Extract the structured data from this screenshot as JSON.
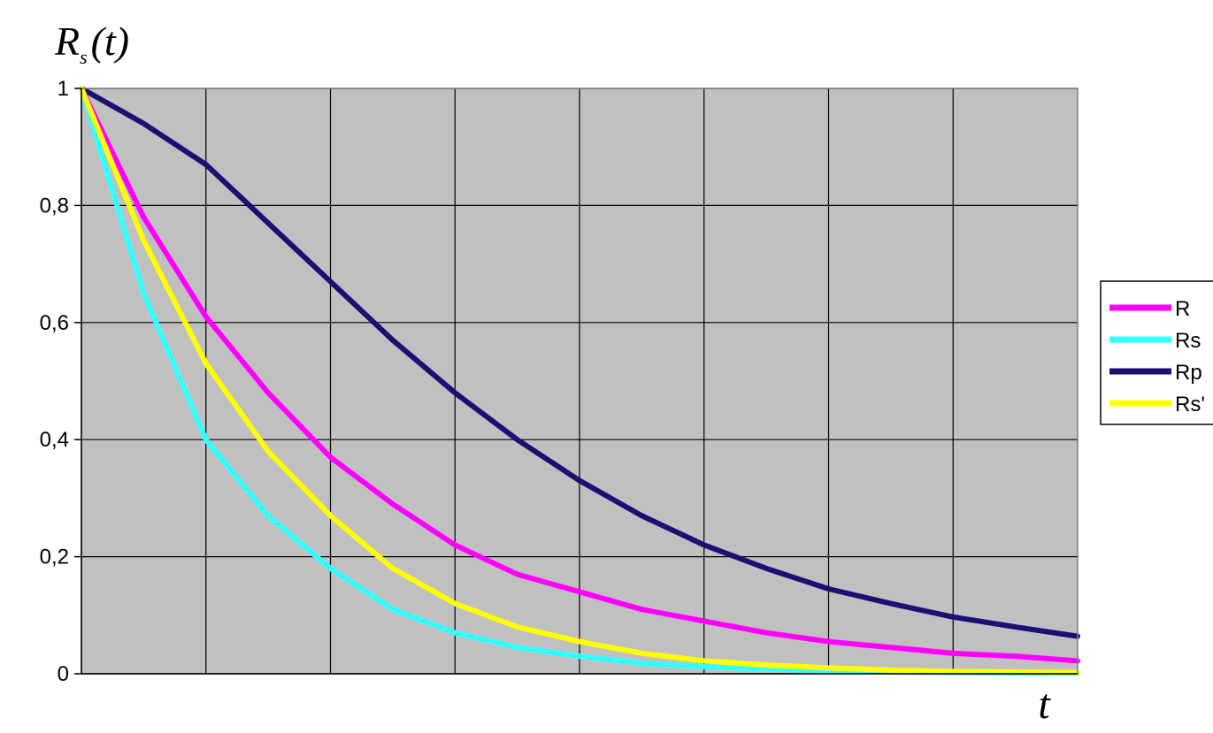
{
  "chart_data": {
    "type": "line",
    "ylabel": "R_s(t)",
    "ylabel_main": "R",
    "ylabel_sub": "s",
    "ylabel_arg": "(t)",
    "xlabel": "t",
    "ylim": [
      0,
      1
    ],
    "yticks": [
      0,
      0.2,
      0.4,
      0.6,
      0.8,
      1
    ],
    "ytick_labels": [
      "0",
      "0,2",
      "0,4",
      "0,6",
      "0,8",
      "1"
    ],
    "x": [
      0,
      0.5,
      1,
      1.5,
      2,
      2.5,
      3,
      3.5,
      4,
      4.5,
      5,
      5.5,
      6,
      6.5,
      7,
      7.5,
      8
    ],
    "xlim": [
      0,
      8
    ],
    "x_gridlines": 8,
    "grid": true,
    "plot_background": "#c0c0c0",
    "legend_position": "right",
    "series": [
      {
        "name": "R",
        "color": "#ff00ff",
        "values": [
          1.0,
          0.78,
          0.61,
          0.48,
          0.37,
          0.29,
          0.22,
          0.17,
          0.14,
          0.11,
          0.09,
          0.07,
          0.055,
          0.045,
          0.035,
          0.03,
          0.022
        ]
      },
      {
        "name": "Rs",
        "color": "#33ffff",
        "values": [
          1.0,
          0.65,
          0.4,
          0.27,
          0.18,
          0.11,
          0.07,
          0.045,
          0.03,
          0.018,
          0.012,
          0.008,
          0.005,
          0.003,
          0.002,
          0.001,
          0.001
        ]
      },
      {
        "name": "Rp",
        "color": "#1a0f73",
        "values": [
          1.0,
          0.94,
          0.87,
          0.77,
          0.67,
          0.57,
          0.48,
          0.4,
          0.33,
          0.27,
          0.22,
          0.18,
          0.145,
          0.12,
          0.097,
          0.08,
          0.064
        ]
      },
      {
        "name": "Rs'",
        "color": "#ffff00",
        "values": [
          1.0,
          0.74,
          0.53,
          0.38,
          0.27,
          0.18,
          0.12,
          0.08,
          0.055,
          0.035,
          0.022,
          0.015,
          0.01,
          0.006,
          0.004,
          0.003,
          0.002
        ]
      }
    ]
  }
}
